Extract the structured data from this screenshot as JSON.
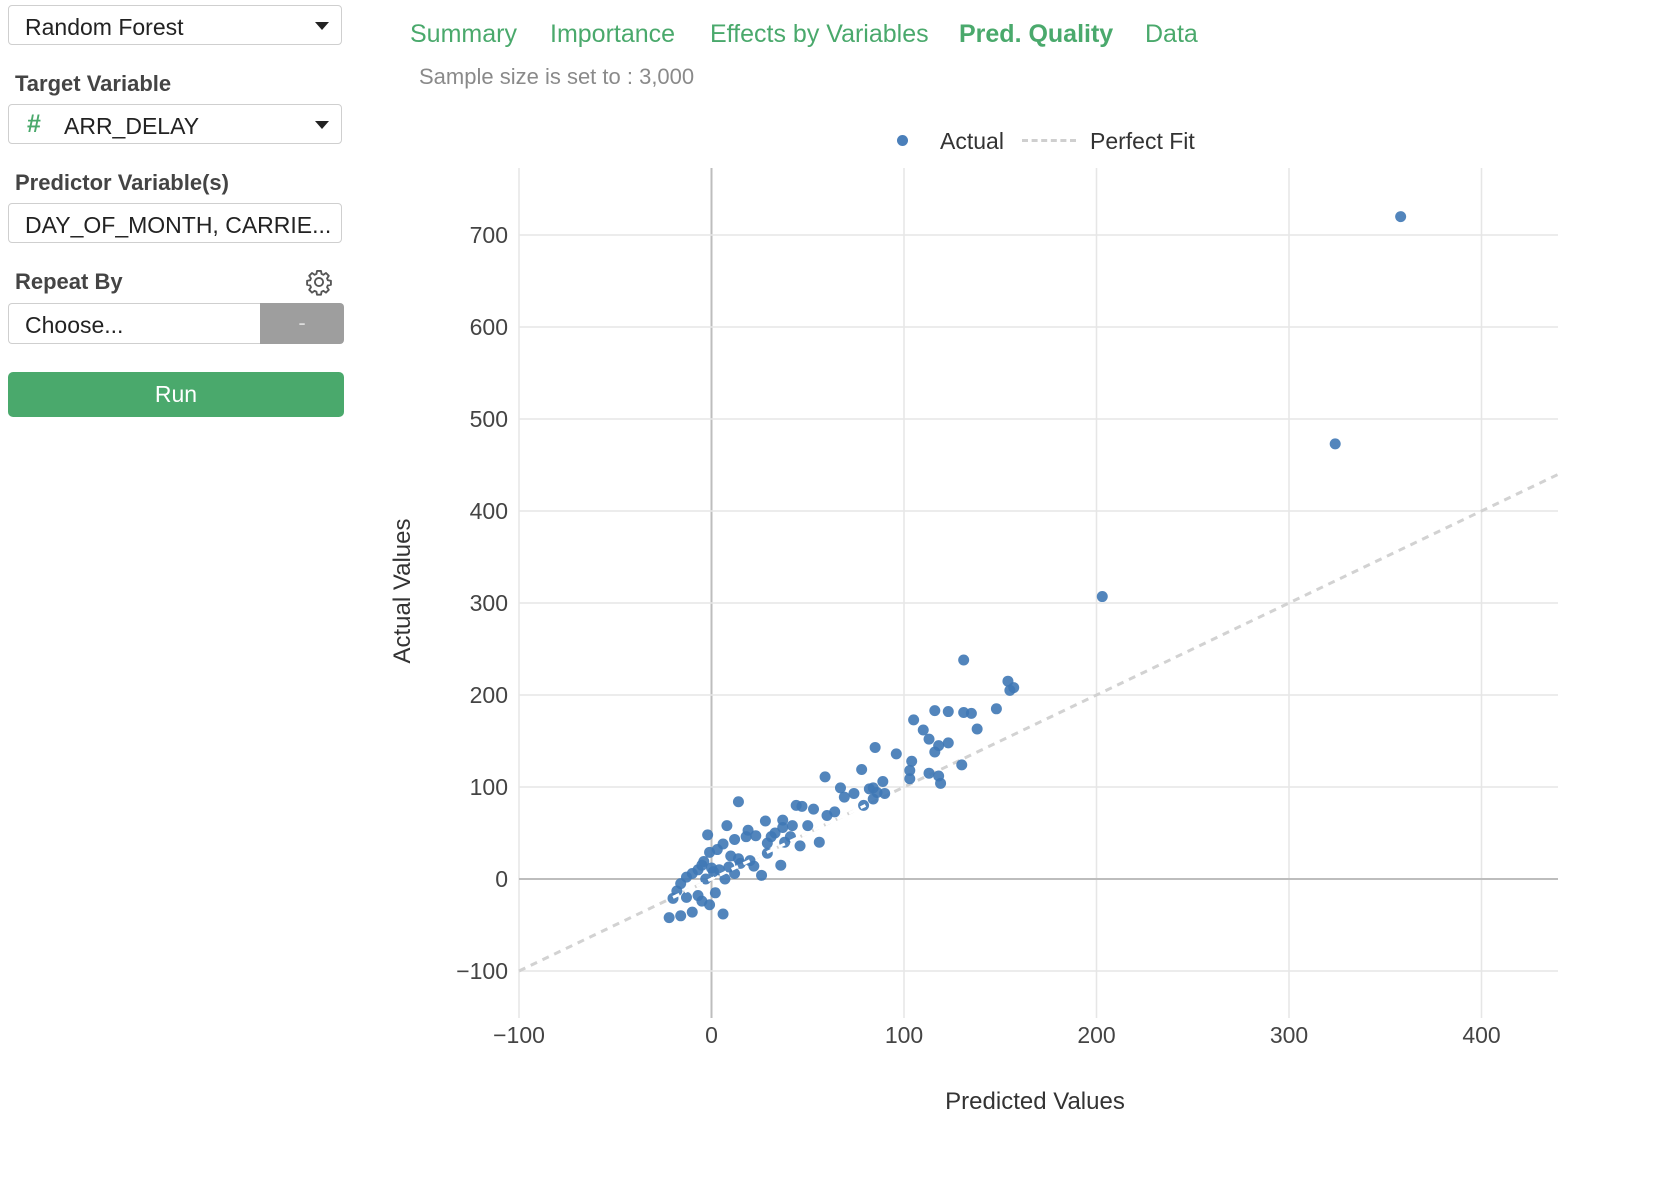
{
  "sidebar": {
    "model_select": {
      "value": "Random Forest"
    },
    "target": {
      "label": "Target Variable",
      "type_icon": "#",
      "value": "ARR_DELAY"
    },
    "predictors": {
      "label": "Predictor Variable(s)",
      "value": "DAY_OF_MONTH, CARRIE..."
    },
    "repeat_by": {
      "label": "Repeat By",
      "placeholder": "Choose...",
      "minus_label": "-"
    },
    "run_label": "Run"
  },
  "tabs": [
    {
      "label": "Summary",
      "active": false
    },
    {
      "label": "Importance",
      "active": false
    },
    {
      "label": "Effects by Variables",
      "active": false
    },
    {
      "label": "Pred. Quality",
      "active": true
    },
    {
      "label": "Data",
      "active": false
    }
  ],
  "sample_note": "Sample size is set to : 3,000",
  "legend": {
    "actual": "Actual",
    "perfect_fit": "Perfect Fit"
  },
  "colors": {
    "accent": "#4aa96c",
    "point": "#3f78b5",
    "grid": "#e6e6e6",
    "fit_line": "#d2d2d2"
  },
  "chart_data": {
    "type": "scatter",
    "xlabel": "Predicted Values",
    "ylabel": "Actual Values",
    "xlim": [
      -100,
      440
    ],
    "ylim": [
      -110,
      780
    ],
    "xticks": [
      -100,
      0,
      100,
      200,
      300,
      400
    ],
    "yticks": [
      -100,
      0,
      100,
      200,
      300,
      400,
      500,
      600,
      700
    ],
    "xtick_labels": [
      "−100",
      "0",
      "100",
      "200",
      "300",
      "400"
    ],
    "ytick_labels": [
      "−100",
      "0",
      "100",
      "200",
      "300",
      "400",
      "500",
      "600",
      "700"
    ],
    "legend_position": "top",
    "series": [
      {
        "name": "Actual",
        "points": [
          [
            358,
            720
          ],
          [
            324,
            473
          ],
          [
            203,
            307
          ],
          [
            131,
            238
          ],
          [
            154,
            215
          ],
          [
            157,
            208
          ],
          [
            155,
            205
          ],
          [
            148,
            185
          ],
          [
            116,
            183
          ],
          [
            123,
            182
          ],
          [
            131,
            181
          ],
          [
            135,
            180
          ],
          [
            105,
            173
          ],
          [
            138,
            163
          ],
          [
            110,
            162
          ],
          [
            113,
            152
          ],
          [
            123,
            148
          ],
          [
            118,
            145
          ],
          [
            116,
            138
          ],
          [
            85,
            143
          ],
          [
            96,
            136
          ],
          [
            104,
            128
          ],
          [
            103,
            118
          ],
          [
            130,
            124
          ],
          [
            78,
            119
          ],
          [
            113,
            115
          ],
          [
            118,
            112
          ],
          [
            103,
            109
          ],
          [
            59,
            111
          ],
          [
            89,
            106
          ],
          [
            84,
            99
          ],
          [
            119,
            104
          ],
          [
            67,
            99
          ],
          [
            82,
            98
          ],
          [
            14,
            84
          ],
          [
            44,
            80
          ],
          [
            47,
            79
          ],
          [
            86,
            94
          ],
          [
            90,
            93
          ],
          [
            74,
            93
          ],
          [
            69,
            89
          ],
          [
            53,
            76
          ],
          [
            60,
            69
          ],
          [
            64,
            73
          ],
          [
            79,
            80
          ],
          [
            84,
            87
          ],
          [
            28,
            63
          ],
          [
            37,
            64
          ],
          [
            42,
            58
          ],
          [
            8,
            58
          ],
          [
            37,
            56
          ],
          [
            19,
            53
          ],
          [
            50,
            58
          ],
          [
            41,
            46
          ],
          [
            56,
            40
          ],
          [
            33,
            50
          ],
          [
            31,
            46
          ],
          [
            29,
            39
          ],
          [
            38,
            40
          ],
          [
            46,
            36
          ],
          [
            23,
            47
          ],
          [
            18,
            46
          ],
          [
            12,
            43
          ],
          [
            -2,
            48
          ],
          [
            6,
            38
          ],
          [
            3,
            32
          ],
          [
            -1,
            29
          ],
          [
            29,
            28
          ],
          [
            36,
            15
          ],
          [
            10,
            25
          ],
          [
            14,
            22
          ],
          [
            20,
            20
          ],
          [
            -4,
            19
          ],
          [
            -7,
            10
          ],
          [
            -10,
            6
          ],
          [
            -13,
            2
          ],
          [
            -16,
            -5
          ],
          [
            -18,
            -13
          ],
          [
            -20,
            -21
          ],
          [
            -13,
            -20
          ],
          [
            -7,
            -18
          ],
          [
            -1,
            -28
          ],
          [
            6,
            -38
          ],
          [
            -22,
            -42
          ],
          [
            -16,
            -40
          ],
          [
            -10,
            -36
          ],
          [
            -5,
            -24
          ],
          [
            2,
            -15
          ],
          [
            7,
            0
          ],
          [
            12,
            6
          ],
          [
            26,
            4
          ],
          [
            22,
            14
          ],
          [
            15,
            17
          ],
          [
            -3,
            0
          ],
          [
            1,
            8
          ],
          [
            4,
            10
          ],
          [
            9,
            13
          ],
          [
            -5,
            15
          ],
          [
            0,
            12
          ]
        ]
      }
    ],
    "perfect_fit": {
      "slope": 1,
      "intercept": 0
    }
  }
}
